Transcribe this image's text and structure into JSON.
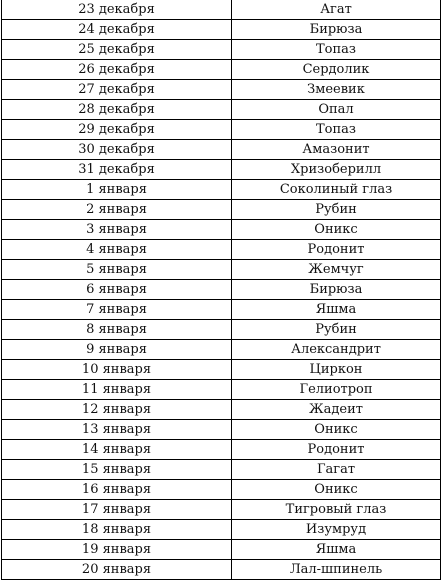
{
  "rows": [
    {
      "date": "23 декабря",
      "stone": "Агат"
    },
    {
      "date": "24 декабря",
      "stone": "Бирюза"
    },
    {
      "date": "25 декабря",
      "stone": "Топаз"
    },
    {
      "date": "26 декабря",
      "stone": "Сердолик"
    },
    {
      "date": "27 декабря",
      "stone": "Змеевик"
    },
    {
      "date": "28 декабря",
      "stone": "Опал"
    },
    {
      "date": "29 декабря",
      "stone": "Топаз"
    },
    {
      "date": "30 декабря",
      "stone": "Амазонит"
    },
    {
      "date": "31 декабря",
      "stone": "Хризоберилл"
    },
    {
      "date": "1 января",
      "stone": "Соколиный глаз"
    },
    {
      "date": "2 января",
      "stone": "Рубин"
    },
    {
      "date": "3 января",
      "stone": "Оникс"
    },
    {
      "date": "4 января",
      "stone": "Родонит"
    },
    {
      "date": "5 января",
      "stone": "Жемчуг"
    },
    {
      "date": "6 января",
      "stone": "Бирюза"
    },
    {
      "date": "7 января",
      "stone": "Яшма"
    },
    {
      "date": "8 января",
      "stone": "Рубин"
    },
    {
      "date": "9 января",
      "stone": "Александрит"
    },
    {
      "date": "10 января",
      "stone": "Циркон"
    },
    {
      "date": "11 января",
      "stone": "Гелиотроп"
    },
    {
      "date": "12 января",
      "stone": "Жадеит"
    },
    {
      "date": "13 января",
      "stone": "Оникс"
    },
    {
      "date": "14 января",
      "stone": "Родонит"
    },
    {
      "date": "15 января",
      "stone": "Гагат"
    },
    {
      "date": "16 января",
      "stone": "Оникс"
    },
    {
      "date": "17 января",
      "stone": "Тигровый глаз"
    },
    {
      "date": "18 января",
      "stone": "Изумруд"
    },
    {
      "date": "19 января",
      "stone": "Яшма"
    },
    {
      "date": "20 января",
      "stone": "Лал-шпинель"
    }
  ]
}
